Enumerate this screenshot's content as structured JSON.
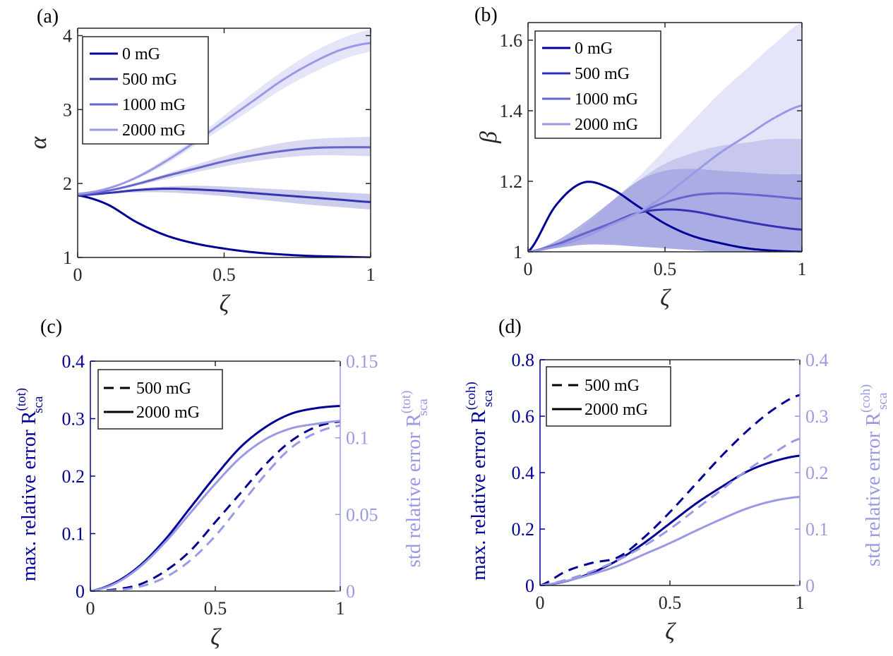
{
  "colors": {
    "dark": "#000099",
    "c500": "#3333b3",
    "c1000": "#6666cc",
    "light": "#9999e6",
    "axis": "#262626"
  },
  "chart_data": [
    {
      "panel": "(a)",
      "type": "line",
      "xlabel": "ζ",
      "ylabel": "α",
      "xlim": [
        0,
        1
      ],
      "ylim": [
        1,
        4.1
      ],
      "xticks": [
        0,
        0.5,
        1
      ],
      "xtick_labels": [
        "0",
        "0.5",
        "1"
      ],
      "yticks": [
        1,
        2,
        3,
        4
      ],
      "ytick_labels": [
        "1",
        "2",
        "3",
        "4"
      ],
      "legend_position": "top-left",
      "x": [
        0,
        0.1,
        0.2,
        0.3,
        0.4,
        0.5,
        0.6,
        0.7,
        0.8,
        0.9,
        1.0
      ],
      "series": [
        {
          "name": "0 mG",
          "color": "#000099",
          "values": [
            1.84,
            1.72,
            1.48,
            1.3,
            1.19,
            1.12,
            1.07,
            1.04,
            1.02,
            1.01,
            1.0
          ]
        },
        {
          "name": "500 mG",
          "color": "#3333b3",
          "values": [
            1.84,
            1.87,
            1.91,
            1.93,
            1.92,
            1.9,
            1.87,
            1.84,
            1.81,
            1.78,
            1.75
          ],
          "band_lower": [
            1.84,
            1.86,
            1.88,
            1.88,
            1.86,
            1.83,
            1.79,
            1.75,
            1.71,
            1.68,
            1.65
          ],
          "band_upper": [
            1.84,
            1.88,
            1.93,
            1.96,
            1.97,
            1.96,
            1.94,
            1.92,
            1.9,
            1.88,
            1.86
          ]
        },
        {
          "name": "1000 mG",
          "color": "#6666cc",
          "values": [
            1.85,
            1.9,
            1.99,
            2.1,
            2.2,
            2.3,
            2.38,
            2.44,
            2.48,
            2.49,
            2.49
          ],
          "band_lower": [
            1.85,
            1.89,
            1.97,
            2.06,
            2.15,
            2.23,
            2.3,
            2.35,
            2.38,
            2.38,
            2.37
          ],
          "band_upper": [
            1.85,
            1.91,
            2.01,
            2.13,
            2.25,
            2.37,
            2.47,
            2.55,
            2.6,
            2.62,
            2.63
          ]
        },
        {
          "name": "2000 mG",
          "color": "#9999e6",
          "values": [
            1.86,
            1.93,
            2.08,
            2.3,
            2.56,
            2.84,
            3.12,
            3.4,
            3.63,
            3.81,
            3.9
          ],
          "band_lower": [
            1.86,
            1.92,
            2.06,
            2.26,
            2.51,
            2.76,
            3.02,
            3.28,
            3.49,
            3.67,
            3.78
          ],
          "band_upper": [
            1.86,
            1.94,
            2.1,
            2.34,
            2.61,
            2.92,
            3.23,
            3.52,
            3.77,
            3.96,
            4.08
          ]
        }
      ]
    },
    {
      "panel": "(b)",
      "type": "line",
      "xlabel": "ζ",
      "ylabel": "β",
      "xlim": [
        0,
        1
      ],
      "ylim": [
        1,
        1.65
      ],
      "xticks": [
        0,
        0.5,
        1
      ],
      "xtick_labels": [
        "0",
        "0.5",
        "1"
      ],
      "yticks": [
        1,
        1.2,
        1.4,
        1.6
      ],
      "ytick_labels": [
        "1",
        "1.2",
        "1.4",
        "1.6"
      ],
      "legend_position": "top-left",
      "x": [
        0,
        0.1,
        0.2,
        0.3,
        0.4,
        0.5,
        0.6,
        0.7,
        0.8,
        0.9,
        1.0
      ],
      "series": [
        {
          "name": "0 mG",
          "color": "#000099",
          "values": [
            1.0,
            1.13,
            1.196,
            1.18,
            1.13,
            1.08,
            1.045,
            1.025,
            1.01,
            1.003,
            1.0
          ]
        },
        {
          "name": "500 mG",
          "color": "#3333b3",
          "values": [
            1.0,
            1.02,
            1.05,
            1.08,
            1.11,
            1.12,
            1.115,
            1.1,
            1.085,
            1.072,
            1.063
          ],
          "band_lower": [
            1.0,
            1.01,
            1.02,
            1.02,
            1.015,
            1.01,
            1.005,
            1.0,
            1.0,
            1.0,
            1.0
          ],
          "band_upper": [
            1.0,
            1.03,
            1.08,
            1.14,
            1.2,
            1.23,
            1.235,
            1.23,
            1.225,
            1.22,
            1.22
          ]
        },
        {
          "name": "1000 mG",
          "color": "#6666cc",
          "values": [
            1.0,
            1.02,
            1.05,
            1.08,
            1.11,
            1.14,
            1.16,
            1.166,
            1.163,
            1.157,
            1.15
          ],
          "band_lower": [
            1.0,
            1.01,
            1.02,
            1.02,
            1.015,
            1.01,
            1.005,
            1.0,
            1.0,
            1.0,
            1.0
          ],
          "band_upper": [
            1.0,
            1.03,
            1.08,
            1.14,
            1.2,
            1.25,
            1.28,
            1.3,
            1.31,
            1.32,
            1.32
          ]
        },
        {
          "name": "2000 mG",
          "color": "#9999e6",
          "values": [
            1.0,
            1.015,
            1.04,
            1.075,
            1.11,
            1.16,
            1.22,
            1.28,
            1.33,
            1.38,
            1.415
          ],
          "band_lower": [
            1.0,
            1.01,
            1.02,
            1.02,
            1.015,
            1.01,
            1.005,
            1.0,
            1.0,
            1.0,
            1.0
          ],
          "band_upper": [
            1.0,
            1.02,
            1.07,
            1.14,
            1.21,
            1.29,
            1.37,
            1.45,
            1.52,
            1.59,
            1.65
          ]
        }
      ]
    },
    {
      "panel": "(c)",
      "type": "line",
      "xlabel": "ζ",
      "ylabel_left": "max. relative error R",
      "ylabel_left_sup": "(tot)",
      "ylabel_left_sub": "sca",
      "ylabel_right": "std relative error R",
      "ylabel_right_sup": "(tot)",
      "ylabel_right_sub": "sca",
      "xlim": [
        0,
        1
      ],
      "ylim_left": [
        0,
        0.4
      ],
      "ylim_right": [
        0,
        0.15
      ],
      "xticks": [
        0,
        0.5,
        1
      ],
      "xtick_labels": [
        "0",
        "0.5",
        "1"
      ],
      "yticks_left": [
        0,
        0.1,
        0.2,
        0.3,
        0.4
      ],
      "ytick_labels_left": [
        "0",
        "0.1",
        "0.2",
        "0.3",
        "0.4"
      ],
      "yticks_right": [
        0,
        0.05,
        0.1,
        0.15
      ],
      "ytick_labels_right": [
        "0",
        "0.05",
        "0.1",
        "0.15"
      ],
      "legend_position": "top-left",
      "legend": [
        {
          "name": "500 mG",
          "style": "dashed"
        },
        {
          "name": "2000 mG",
          "style": "solid"
        }
      ],
      "x": [
        0,
        0.1,
        0.2,
        0.3,
        0.4,
        0.5,
        0.6,
        0.7,
        0.8,
        0.9,
        1.0
      ],
      "series": [
        {
          "name": "500 mG",
          "axis": "left",
          "style": "dashed",
          "color": "#000099",
          "values": [
            0,
            0.003,
            0.012,
            0.035,
            0.07,
            0.12,
            0.17,
            0.22,
            0.26,
            0.285,
            0.295
          ]
        },
        {
          "name": "2000 mG",
          "axis": "left",
          "style": "solid",
          "color": "#000099",
          "values": [
            0,
            0.015,
            0.045,
            0.09,
            0.145,
            0.2,
            0.25,
            0.285,
            0.308,
            0.318,
            0.322
          ]
        },
        {
          "name": "500 mG",
          "axis": "right",
          "style": "dashed",
          "color": "#9999e6",
          "values": [
            0,
            0.0005,
            0.003,
            0.009,
            0.02,
            0.036,
            0.056,
            0.076,
            0.093,
            0.103,
            0.108
          ]
        },
        {
          "name": "2000 mG",
          "axis": "right",
          "style": "solid",
          "color": "#9999e6",
          "values": [
            0,
            0.005,
            0.016,
            0.032,
            0.051,
            0.07,
            0.087,
            0.099,
            0.106,
            0.109,
            0.111
          ]
        }
      ]
    },
    {
      "panel": "(d)",
      "type": "line",
      "xlabel": "ζ",
      "ylabel_left": "max. relative error R",
      "ylabel_left_sup": "(coh)",
      "ylabel_left_sub": "sca",
      "ylabel_right": "std relative error R",
      "ylabel_right_sup": "(coh)",
      "ylabel_right_sub": "sca",
      "xlim": [
        0,
        1
      ],
      "ylim_left": [
        0,
        0.8
      ],
      "ylim_right": [
        0,
        0.4
      ],
      "xticks": [
        0,
        0.5,
        1
      ],
      "xtick_labels": [
        "0",
        "0.5",
        "1"
      ],
      "yticks_left": [
        0,
        0.2,
        0.4,
        0.6,
        0.8
      ],
      "ytick_labels_left": [
        "0",
        "0.2",
        "0.4",
        "0.6",
        "0.8"
      ],
      "yticks_right": [
        0,
        0.1,
        0.2,
        0.3,
        0.4
      ],
      "ytick_labels_right": [
        "0",
        "0.1",
        "0.2",
        "0.3",
        "0.4"
      ],
      "legend_position": "top-left",
      "legend": [
        {
          "name": "500 mG",
          "style": "dashed"
        },
        {
          "name": "2000 mG",
          "style": "solid"
        }
      ],
      "x": [
        0,
        0.1,
        0.2,
        0.3,
        0.4,
        0.5,
        0.6,
        0.7,
        0.8,
        0.9,
        1.0
      ],
      "series": [
        {
          "name": "500 mG",
          "axis": "left",
          "style": "dashed",
          "color": "#000099",
          "values": [
            0,
            0.05,
            0.08,
            0.1,
            0.17,
            0.26,
            0.36,
            0.46,
            0.55,
            0.625,
            0.675
          ]
        },
        {
          "name": "2000 mG",
          "axis": "left",
          "style": "solid",
          "color": "#000099",
          "values": [
            0,
            0.015,
            0.045,
            0.09,
            0.15,
            0.22,
            0.29,
            0.35,
            0.405,
            0.44,
            0.46
          ]
        },
        {
          "name": "500 mG",
          "axis": "right",
          "style": "dashed",
          "color": "#9999e6",
          "values": [
            0,
            0.01,
            0.025,
            0.045,
            0.07,
            0.1,
            0.135,
            0.17,
            0.205,
            0.235,
            0.26
          ]
        },
        {
          "name": "2000 mG",
          "axis": "right",
          "style": "solid",
          "color": "#9999e6",
          "values": [
            0,
            0.008,
            0.02,
            0.035,
            0.055,
            0.075,
            0.097,
            0.118,
            0.137,
            0.15,
            0.157
          ]
        }
      ]
    }
  ]
}
